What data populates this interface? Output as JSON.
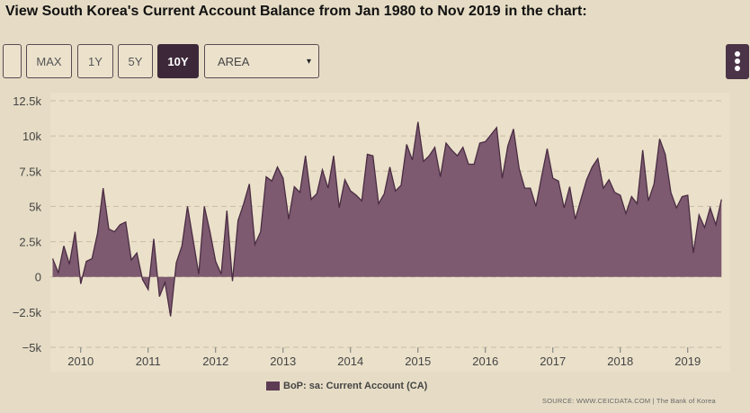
{
  "header": {
    "title": "View South Korea's Current Account Balance from Jan 1980 to Nov 2019 in the chart:"
  },
  "toolbar": {
    "blank_label": "",
    "max_label": "MAX",
    "y1_label": "1Y",
    "y5_label": "5Y",
    "y10_label": "10Y",
    "chart_type_value": "AREA",
    "caret": "▾"
  },
  "colors": {
    "area_fill": "#7d5a6f",
    "line": "#4a2c43",
    "grid": "#c9bca5",
    "background": "#e6dcc5",
    "active_button": "#3d2839"
  },
  "chart_data": {
    "type": "area",
    "title": "",
    "xlabel": "",
    "ylabel": "",
    "ylim": [
      -5000,
      12500
    ],
    "yticks": [
      -5000,
      -2500,
      0,
      2500,
      5000,
      7500,
      10000,
      12500
    ],
    "ytick_labels": [
      "−5k",
      "−2.5k",
      "0",
      "2.5k",
      "5k",
      "7.5k",
      "10k",
      "12.5k"
    ],
    "xlim": [
      2009.55,
      2019.55
    ],
    "xticks": [
      2010,
      2011,
      2012,
      2013,
      2014,
      2015,
      2016,
      2017,
      2018,
      2019
    ],
    "xtick_labels": [
      "2010",
      "2011",
      "2012",
      "2013",
      "2014",
      "2015",
      "2016",
      "2017",
      "2018",
      "2019"
    ],
    "grid": true,
    "legend_position": "bottom-center",
    "series": [
      {
        "name": "BoP: sa: Current Account (CA)",
        "x": [
          2009.583,
          2009.667,
          2009.75,
          2009.833,
          2009.917,
          2010.0,
          2010.083,
          2010.167,
          2010.25,
          2010.333,
          2010.417,
          2010.5,
          2010.583,
          2010.667,
          2010.75,
          2010.833,
          2010.917,
          2011.0,
          2011.083,
          2011.167,
          2011.25,
          2011.333,
          2011.417,
          2011.5,
          2011.583,
          2011.667,
          2011.75,
          2011.833,
          2011.917,
          2012.0,
          2012.083,
          2012.167,
          2012.25,
          2012.333,
          2012.417,
          2012.5,
          2012.583,
          2012.667,
          2012.75,
          2012.833,
          2012.917,
          2013.0,
          2013.083,
          2013.167,
          2013.25,
          2013.333,
          2013.417,
          2013.5,
          2013.583,
          2013.667,
          2013.75,
          2013.833,
          2013.917,
          2014.0,
          2014.083,
          2014.167,
          2014.25,
          2014.333,
          2014.417,
          2014.5,
          2014.583,
          2014.667,
          2014.75,
          2014.833,
          2014.917,
          2015.0,
          2015.083,
          2015.167,
          2015.25,
          2015.333,
          2015.417,
          2015.5,
          2015.583,
          2015.667,
          2015.75,
          2015.833,
          2015.917,
          2016.0,
          2016.083,
          2016.167,
          2016.25,
          2016.333,
          2016.417,
          2016.5,
          2016.583,
          2016.667,
          2016.75,
          2016.833,
          2016.917,
          2017.0,
          2017.083,
          2017.167,
          2017.25,
          2017.333,
          2017.417,
          2017.5,
          2017.583,
          2017.667,
          2017.75,
          2017.833,
          2017.917,
          2018.0,
          2018.083,
          2018.167,
          2018.25,
          2018.333,
          2018.417,
          2018.5,
          2018.583,
          2018.667,
          2018.75,
          2018.833,
          2018.917,
          2019.0,
          2019.083,
          2019.167,
          2019.25,
          2019.333,
          2019.417,
          2019.5
        ],
        "values": [
          1300,
          300,
          2200,
          900,
          3200,
          -500,
          1100,
          1300,
          3100,
          6300,
          3400,
          3200,
          3700,
          3900,
          1200,
          1700,
          -200,
          -900,
          2700,
          -1400,
          -400,
          -2800,
          1000,
          2200,
          5000,
          2600,
          200,
          5000,
          3200,
          1100,
          200,
          4700,
          -300,
          4000,
          5200,
          6600,
          2300,
          3200,
          7100,
          6800,
          7800,
          7000,
          4100,
          6400,
          6000,
          8600,
          5500,
          5900,
          7600,
          6300,
          8600,
          4900,
          6900,
          6100,
          5800,
          5400,
          8700,
          8600,
          5200,
          5900,
          7800,
          6100,
          6500,
          9400,
          8300,
          11000,
          8200,
          8600,
          9200,
          7100,
          9500,
          9000,
          8600,
          9200,
          8000,
          8000,
          9500,
          9600,
          10100,
          10600,
          7000,
          9300,
          10500,
          7700,
          6300,
          6300,
          5000,
          7100,
          9100,
          7000,
          6800,
          4900,
          6400,
          4100,
          5500,
          6900,
          7800,
          8400,
          6300,
          6900,
          6000,
          5800,
          4500,
          5700,
          5200,
          9000,
          5400,
          6600,
          9800,
          8700,
          6000,
          4900,
          5700,
          5800,
          1700,
          4400,
          3500,
          4900,
          3700,
          5500
        ]
      }
    ]
  },
  "legend": {
    "label": "BoP: sa: Current Account (CA)"
  },
  "footer": {
    "source": "SOURCE: WWW.CEICDATA.COM | The Bank of Korea"
  }
}
